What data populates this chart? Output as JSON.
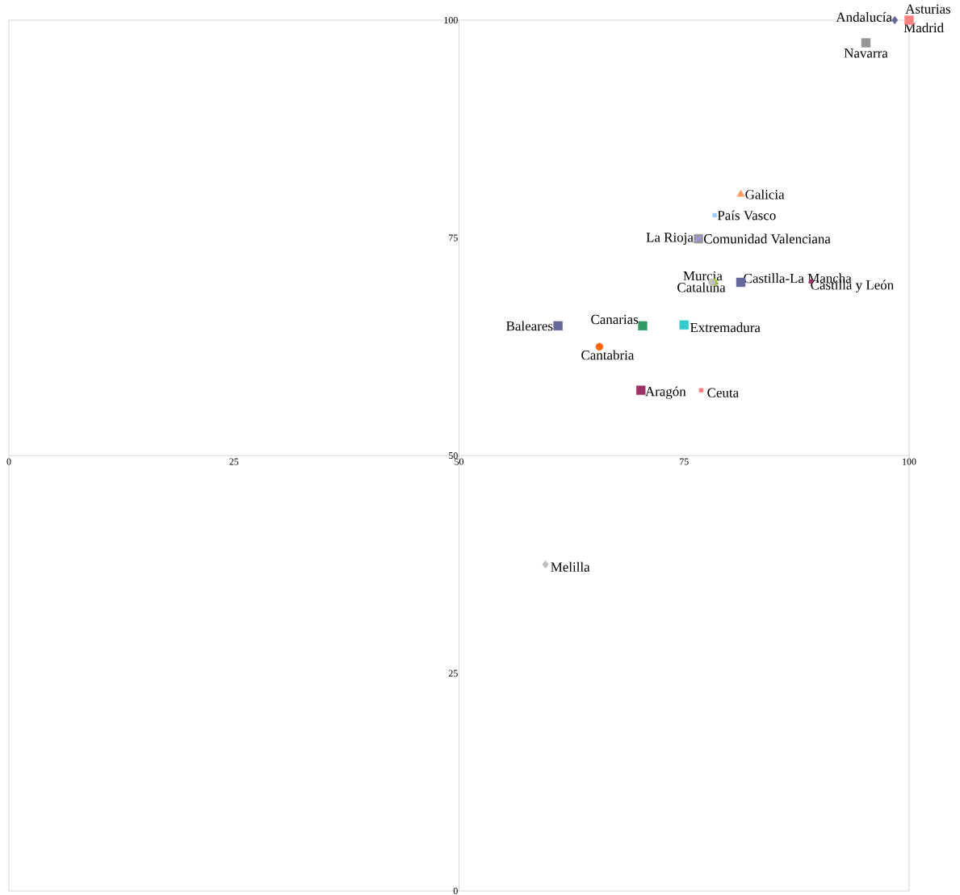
{
  "chart_data": {
    "type": "scatter",
    "xlim": [
      0,
      100
    ],
    "ylim": [
      0,
      100
    ],
    "xticks": [
      0,
      25,
      50,
      75,
      100
    ],
    "yticks": [
      0,
      25,
      50,
      75,
      100
    ],
    "series": [
      {
        "name": "Andalucía",
        "color": "#666699",
        "marker": "diamond",
        "x": [
          98.4
        ],
        "values": [
          100
        ]
      },
      {
        "name": "Madrid",
        "color": "#ff8080",
        "marker": "square",
        "x": [
          100
        ],
        "values": [
          100
        ]
      },
      {
        "name": "Navarra",
        "color": "#969696",
        "marker": "square",
        "x": [
          95.2
        ],
        "values": [
          97.4
        ]
      },
      {
        "name": "Galicia",
        "color": "#ff9966",
        "marker": "triangle",
        "x": [
          81.3
        ],
        "values": [
          80
        ]
      },
      {
        "name": "País Vasco",
        "color": "#99ccff",
        "marker": "square",
        "x": [
          78.4
        ],
        "values": [
          77.6
        ]
      },
      {
        "name": "Comunidad Valenciana",
        "color": "#969696",
        "marker": "square",
        "x": [
          76.6
        ],
        "values": [
          74.9
        ]
      },
      {
        "name": "La Rioja",
        "color": "#9999ff",
        "marker": "cross",
        "x": [
          76.6
        ],
        "values": [
          74.9
        ]
      },
      {
        "name": "Murcia",
        "color": "#99cc00",
        "marker": "circle",
        "x": [
          78.3
        ],
        "values": [
          69.9
        ]
      },
      {
        "name": "Cataluña",
        "color": "#c0c0c0",
        "marker": "circle",
        "x": [
          78.1
        ],
        "values": [
          69.9
        ]
      },
      {
        "name": "Castilla-La Mancha",
        "color": "#666699",
        "marker": "square",
        "x": [
          81.3
        ],
        "values": [
          69.9
        ]
      },
      {
        "name": "Castilla y León",
        "color": "#993366",
        "marker": "square",
        "x": [
          89.1
        ],
        "values": [
          70
        ]
      },
      {
        "name": "Baleares",
        "color": "#666699",
        "marker": "square",
        "x": [
          61
        ],
        "values": [
          64.9
        ]
      },
      {
        "name": "Canarias",
        "color": "#339966",
        "marker": "square",
        "x": [
          70.4
        ],
        "values": [
          64.9
        ]
      },
      {
        "name": "Extremadura",
        "color": "#33cccc",
        "marker": "square",
        "x": [
          75
        ],
        "values": [
          65
        ]
      },
      {
        "name": "Cantabria",
        "color": "#ff6600",
        "marker": "circle",
        "x": [
          65.6
        ],
        "values": [
          62.5
        ]
      },
      {
        "name": "Aragón",
        "color": "#993366",
        "marker": "square",
        "x": [
          70.2
        ],
        "values": [
          57.5
        ]
      },
      {
        "name": "Ceuta",
        "color": "#ff8080",
        "marker": "square",
        "x": [
          76.9
        ],
        "values": [
          57.5
        ]
      },
      {
        "name": "Melilla",
        "color": "#c0c0c0",
        "marker": "diamond",
        "x": [
          59.6
        ],
        "values": [
          37.5
        ]
      }
    ],
    "annotations": [
      {
        "text": "Asturias",
        "x": 100,
        "y": 100
      }
    ]
  }
}
